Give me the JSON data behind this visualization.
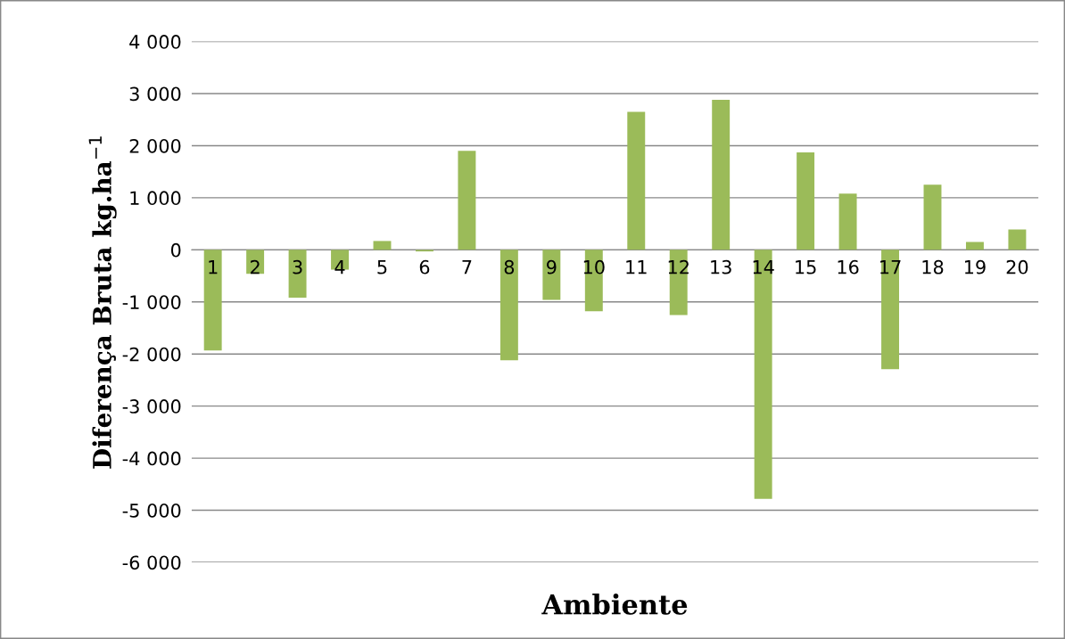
{
  "chart_data": {
    "type": "bar",
    "xlabel": "Ambiente",
    "ylabel": "Diferença Bruta kg.ha$^{−1}$",
    "categories": [
      "1",
      "2",
      "3",
      "4",
      "5",
      "6",
      "7",
      "8",
      "9",
      "10",
      "11",
      "12",
      "13",
      "14",
      "15",
      "16",
      "17",
      "18",
      "19",
      "20"
    ],
    "series": [
      {
        "color": "#9bbb59",
        "values": [
          -1930,
          -460,
          -920,
          -380,
          170,
          -30,
          1900,
          -2120,
          -960,
          -1180,
          2650,
          -1250,
          2880,
          -4780,
          1870,
          1080,
          -2290,
          1250,
          150,
          390
        ]
      }
    ],
    "ylim": [
      -6000,
      4000
    ],
    "yticks": [
      {
        "value": -6000,
        "label": "-6 000"
      },
      {
        "value": -5000,
        "label": "-5 000"
      },
      {
        "value": -4000,
        "label": "-4 000"
      },
      {
        "value": -3000,
        "label": "-3 000"
      },
      {
        "value": -2000,
        "label": "-2 000"
      },
      {
        "value": -1000,
        "label": "-1 000"
      },
      {
        "value": 0,
        "label": "0"
      },
      {
        "value": 1000,
        "label": "1 000"
      },
      {
        "value": 2000,
        "label": "2 000"
      },
      {
        "value": 3000,
        "label": "3 000"
      },
      {
        "value": 4000,
        "label": "4 000"
      }
    ],
    "grid": "y",
    "legend": false
  }
}
